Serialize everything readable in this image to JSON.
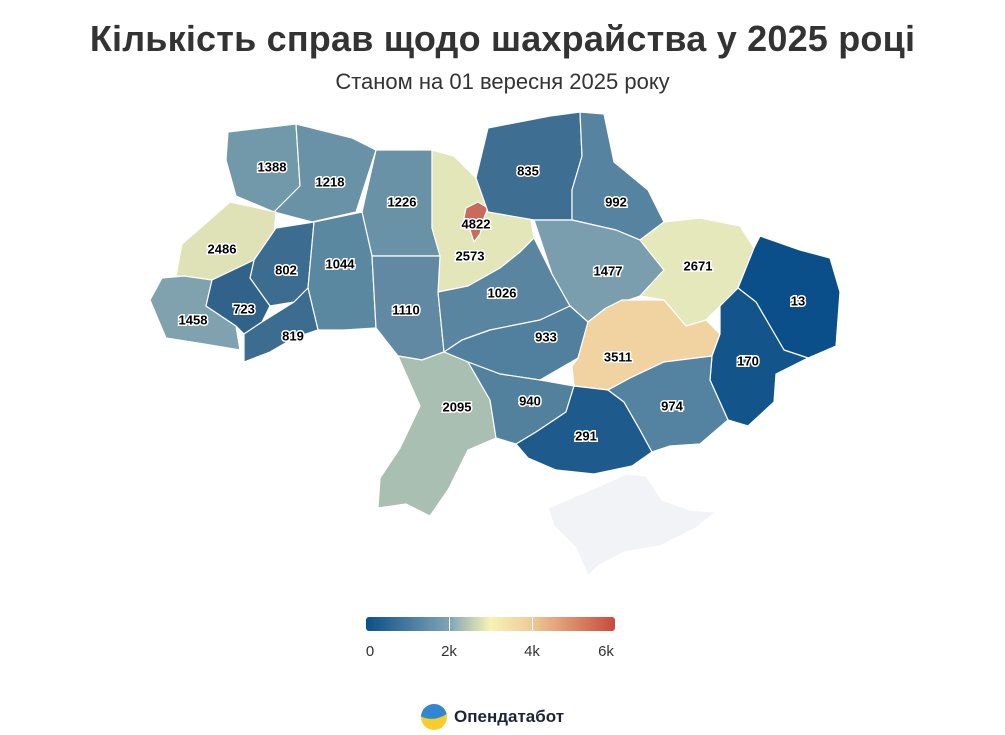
{
  "title": "Кількість справ щодо шахрайства у 2025 році",
  "subtitle": "Станом на 01 вересня 2025 року",
  "chart_data": {
    "type": "choropleth",
    "regions": [
      {
        "id": "volyn",
        "value": 1388,
        "color": "#7299a9"
      },
      {
        "id": "rivne",
        "value": 1218,
        "color": "#6992a6"
      },
      {
        "id": "zhytomyr",
        "value": 1226,
        "color": "#6992a6"
      },
      {
        "id": "kyiv-oblast",
        "value": 2573,
        "color": "#e2e6b9"
      },
      {
        "id": "kyiv-city",
        "value": 4822,
        "color": "#c96a5c"
      },
      {
        "id": "chernihiv",
        "value": 835,
        "color": "#3e6f93"
      },
      {
        "id": "sumy",
        "value": 992,
        "color": "#5583a0"
      },
      {
        "id": "lviv",
        "value": 2486,
        "color": "#dfe2b6"
      },
      {
        "id": "ternopil",
        "value": 802,
        "color": "#3d6c91"
      },
      {
        "id": "khmelnytskyi",
        "value": 1044,
        "color": "#5b88a1"
      },
      {
        "id": "vinnytsia",
        "value": 1110,
        "color": "#6189a3"
      },
      {
        "id": "cherkasy",
        "value": 1026,
        "color": "#5a85a0"
      },
      {
        "id": "poltava",
        "value": 1477,
        "color": "#7a9eae"
      },
      {
        "id": "kharkiv",
        "value": 2671,
        "color": "#e4e8bb"
      },
      {
        "id": "luhansk",
        "value": 13,
        "color": "#0b4f8a"
      },
      {
        "id": "zakarpattia",
        "value": 1458,
        "color": "#7fa2ae"
      },
      {
        "id": "ivano-frankivsk",
        "value": 723,
        "color": "#31628a"
      },
      {
        "id": "chernivtsi",
        "value": 819,
        "color": "#3d6c91"
      },
      {
        "id": "kirovohrad",
        "value": 933,
        "color": "#50809d"
      },
      {
        "id": "dnipropetrovsk",
        "value": 3511,
        "color": "#f0d3a0"
      },
      {
        "id": "donetsk",
        "value": 170,
        "color": "#13548b"
      },
      {
        "id": "odesa",
        "value": 2095,
        "color": "#a9bfb1"
      },
      {
        "id": "mykolaiv",
        "value": 940,
        "color": "#51819d"
      },
      {
        "id": "kherson",
        "value": 291,
        "color": "#1f5a8c"
      },
      {
        "id": "zaporizhzhia",
        "value": 974,
        "color": "#5383a0"
      },
      {
        "id": "crimea",
        "value": null,
        "color": "#f2f3f7"
      }
    ],
    "legend": {
      "min": 0,
      "max": 6000,
      "tick_labels": [
        "0",
        "2k",
        "4k",
        "6k"
      ]
    }
  },
  "brand": {
    "name": "Опендатабот",
    "icon": "opendatabot-logo-icon"
  }
}
